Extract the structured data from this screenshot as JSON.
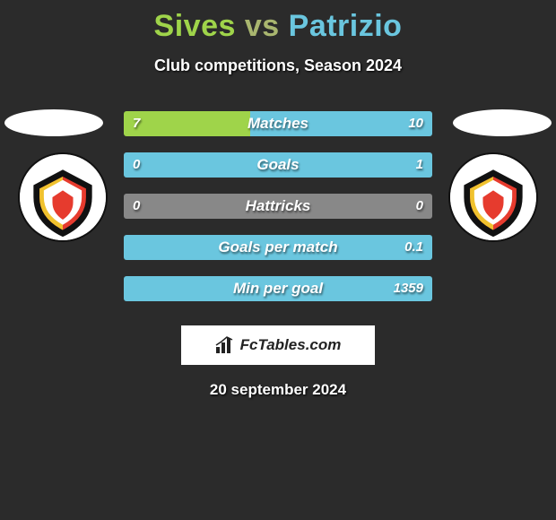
{
  "title": {
    "player1": "Sives",
    "vs": "vs",
    "player2": "Patrizio",
    "color1": "#9fd44a",
    "color_vs": "#a9b66f",
    "color2": "#6ac6df"
  },
  "subtitle": "Club competitions, Season 2024",
  "date": "20 september 2024",
  "footer_brand": "FcTables.com",
  "bar_colors": {
    "left": "#9fd44a",
    "right": "#6ac6df",
    "full_right": "#6ac6df",
    "neutral": "#888888"
  },
  "stats": [
    {
      "label": "Matches",
      "left_val": "7",
      "right_val": "10",
      "left_pct": 41,
      "right_pct": 59
    },
    {
      "label": "Goals",
      "left_val": "0",
      "right_val": "1",
      "left_pct": 0,
      "right_pct": 100
    },
    {
      "label": "Hattricks",
      "left_val": "0",
      "right_val": "0",
      "left_pct": 0,
      "right_pct": 0
    },
    {
      "label": "Goals per match",
      "left_val": "",
      "right_val": "0.1",
      "left_pct": 0,
      "right_pct": 100
    },
    {
      "label": "Min per goal",
      "left_val": "",
      "right_val": "1359",
      "left_pct": 0,
      "right_pct": 100
    }
  ]
}
